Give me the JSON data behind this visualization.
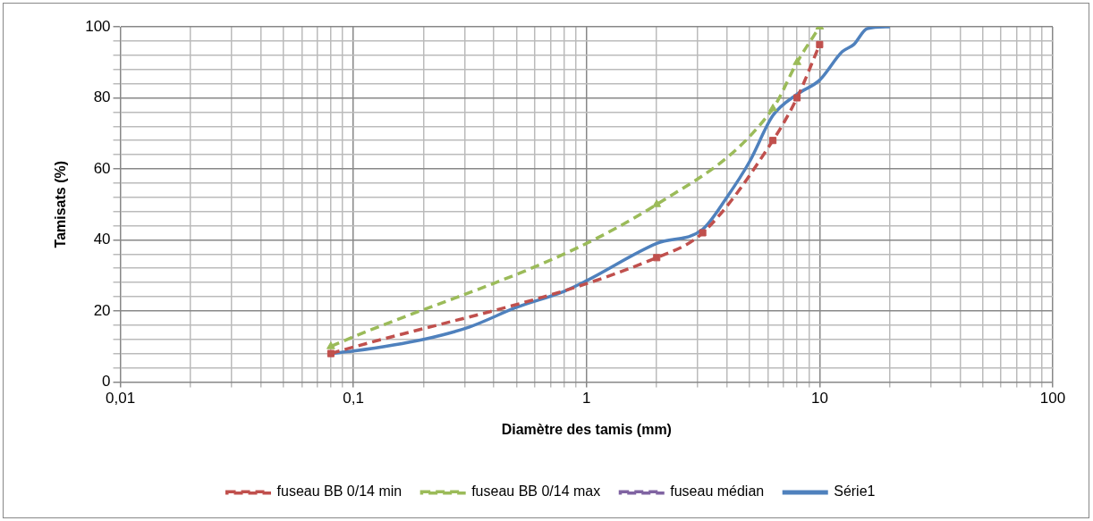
{
  "chart_data": {
    "type": "line",
    "xlabel": "Diamètre des tamis (mm)",
    "ylabel": "Tamisats (%)",
    "log": "x",
    "xlim": [
      0.01,
      100
    ],
    "ylim": [
      0,
      100
    ],
    "xticks": [
      {
        "value": 0.01,
        "label": "0,01"
      },
      {
        "value": 0.02,
        "label": null
      },
      {
        "value": 0.03,
        "label": null
      },
      {
        "value": 0.04,
        "label": null
      },
      {
        "value": 0.05,
        "label": null
      },
      {
        "value": 0.06,
        "label": null
      },
      {
        "value": 0.07,
        "label": null
      },
      {
        "value": 0.08,
        "label": null
      },
      {
        "value": 0.09,
        "label": null
      },
      {
        "value": 0.1,
        "label": "0,1"
      },
      {
        "value": 0.2,
        "label": null
      },
      {
        "value": 0.3,
        "label": null
      },
      {
        "value": 0.4,
        "label": null
      },
      {
        "value": 0.5,
        "label": null
      },
      {
        "value": 0.6,
        "label": null
      },
      {
        "value": 0.7,
        "label": null
      },
      {
        "value": 0.8,
        "label": null
      },
      {
        "value": 0.9,
        "label": null
      },
      1,
      {
        "value": 2,
        "label": null
      },
      {
        "value": 3,
        "label": null
      },
      {
        "value": 4,
        "label": null
      },
      {
        "value": 5,
        "label": null
      },
      {
        "value": 6,
        "label": null
      },
      {
        "value": 7,
        "label": null
      },
      {
        "value": 8,
        "label": null
      },
      {
        "value": 9,
        "label": null
      },
      10,
      {
        "value": 20,
        "label": null
      },
      {
        "value": 30,
        "label": null
      },
      {
        "value": 40,
        "label": null
      },
      {
        "value": 50,
        "label": null
      },
      {
        "value": 60,
        "label": null
      },
      {
        "value": 70,
        "label": null
      },
      {
        "value": 80,
        "label": null
      },
      {
        "value": 90,
        "label": null
      },
      100
    ],
    "yticks": [
      0,
      {
        "value": 4,
        "label": null
      },
      {
        "value": 8,
        "label": null
      },
      {
        "value": 12,
        "label": null
      },
      {
        "value": 16,
        "label": null
      },
      20,
      {
        "value": 24,
        "label": null
      },
      {
        "value": 28,
        "label": null
      },
      {
        "value": 32,
        "label": null
      },
      {
        "value": 36,
        "label": null
      },
      40,
      {
        "value": 44,
        "label": null
      },
      {
        "value": 48,
        "label": null
      },
      {
        "value": 52,
        "label": null
      },
      {
        "value": 56,
        "label": null
      },
      60,
      {
        "value": 64,
        "label": null
      },
      {
        "value": 68,
        "label": null
      },
      {
        "value": 72,
        "label": null
      },
      {
        "value": 76,
        "label": null
      },
      80,
      {
        "value": 84,
        "label": null
      },
      {
        "value": 88,
        "label": null
      },
      {
        "value": 92,
        "label": null
      },
      {
        "value": 96,
        "label": null
      },
      100
    ],
    "grid": true,
    "legend": "bottom",
    "series": [
      {
        "name": "fuseau BB 0/14 min",
        "color": "#c0504d",
        "marker": "square",
        "line_style": "dashed",
        "x": [
          0.08,
          2,
          3.15,
          6.3,
          8,
          10
        ],
        "values": [
          8,
          35,
          42,
          68,
          80,
          95
        ]
      },
      {
        "name": "fuseau BB 0/14 max",
        "color": "#9bbb59",
        "marker": "triangle",
        "line_style": "dashed",
        "x": [
          0.08,
          2,
          6.3,
          8,
          10
        ],
        "values": [
          10,
          50,
          77,
          90,
          100
        ]
      },
      {
        "name": "fuseau médian",
        "color": "#8064a2",
        "marker": "cross",
        "line_style": "dashed"
      },
      {
        "name": "Série1",
        "color": "#4f81bd",
        "marker": "none",
        "line_style": "solid",
        "x": [
          0.08,
          0.1,
          0.2,
          0.315,
          0.5,
          0.8,
          1,
          2,
          3.15,
          4,
          5,
          6.3,
          8,
          10,
          12.5,
          14,
          16,
          20
        ],
        "values": [
          8,
          8.7,
          12,
          15.5,
          21,
          25.5,
          28.5,
          39,
          43,
          52,
          62,
          75,
          81,
          85,
          93,
          95,
          99.5,
          100
        ]
      }
    ]
  }
}
